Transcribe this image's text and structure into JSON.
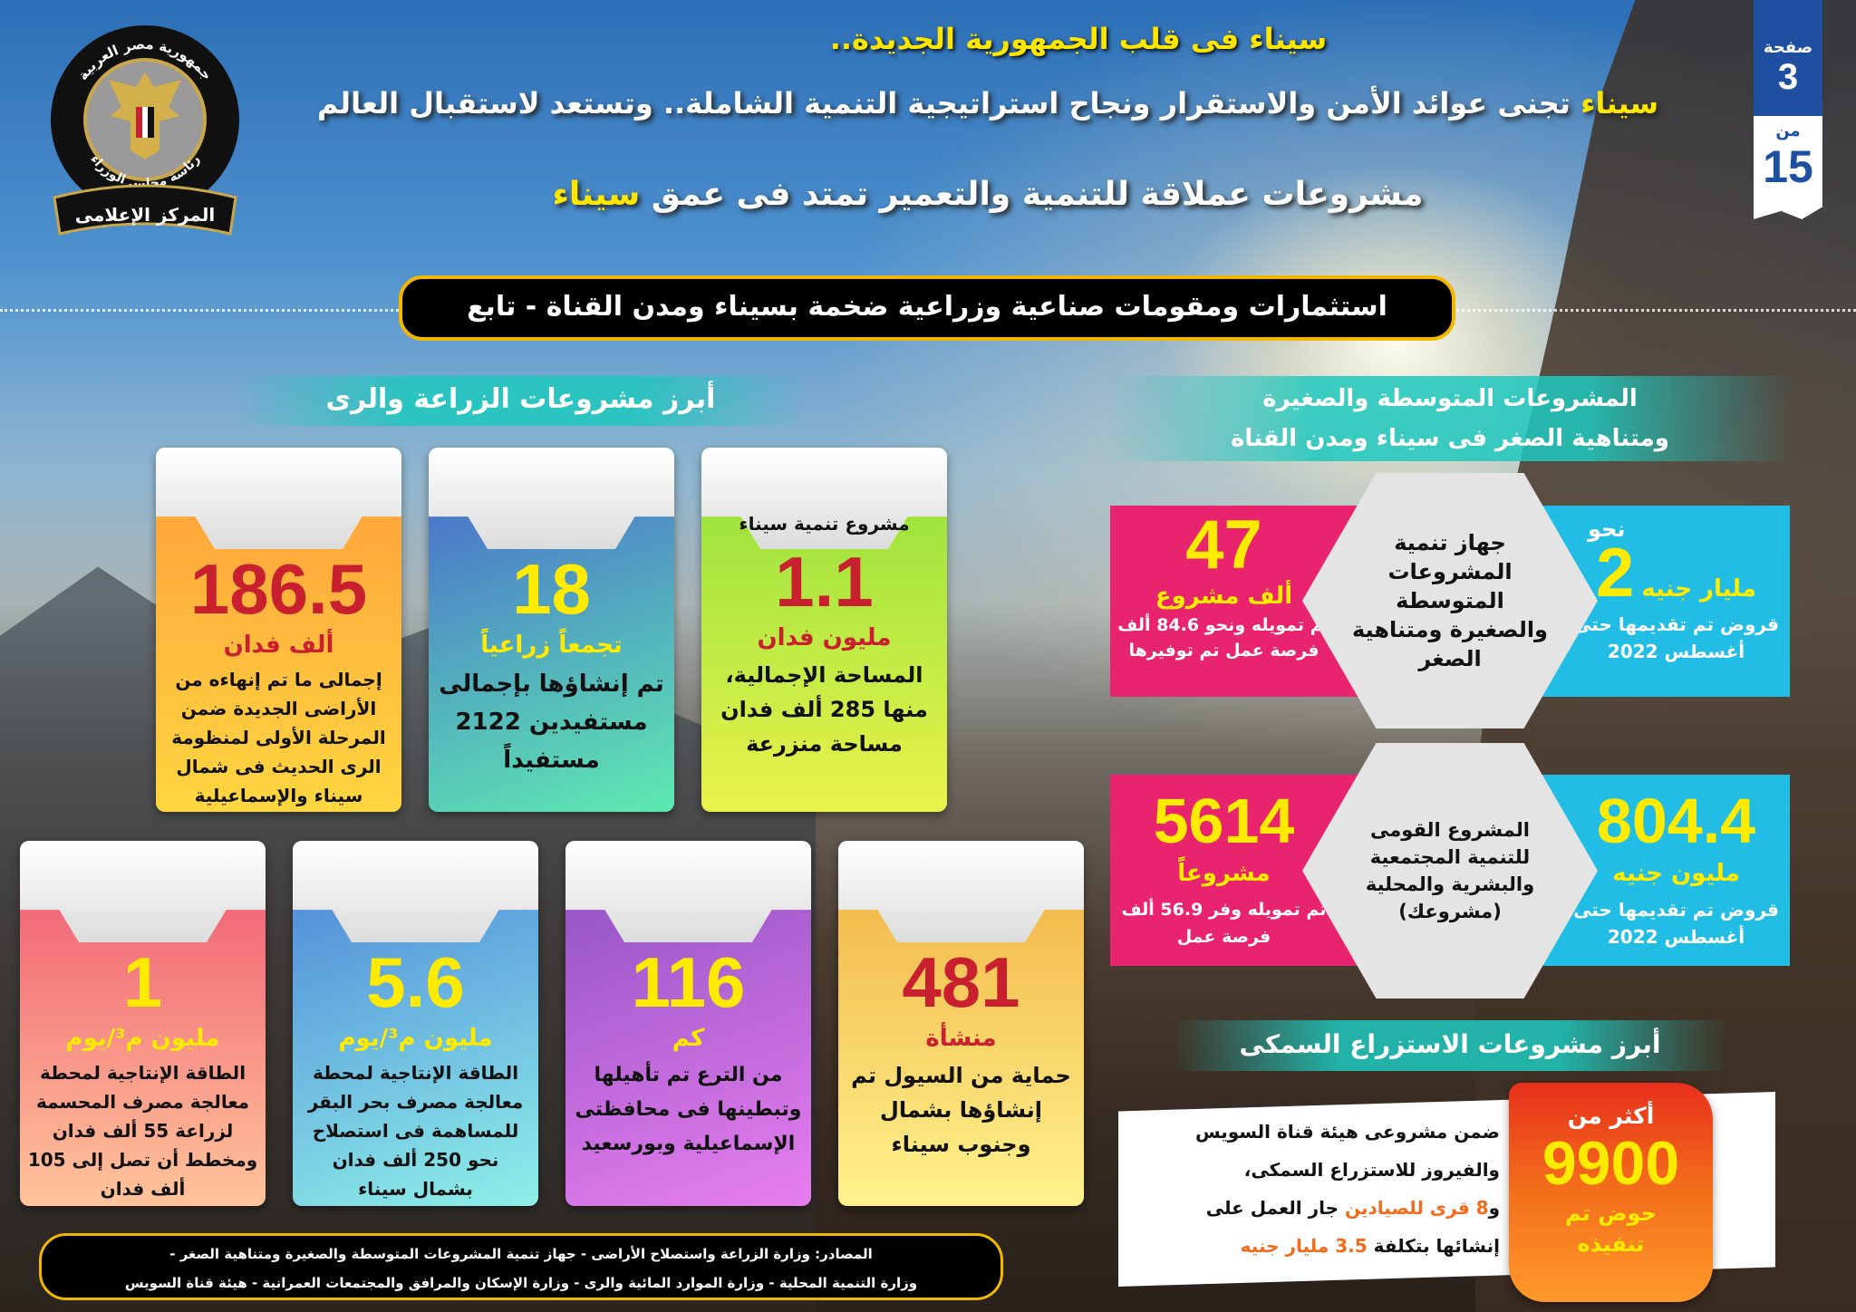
{
  "logo": {
    "ring_top": "جمهورية مصر العربية",
    "ring_bottom": "رئاسة مجلس الوزراء",
    "ribbon": "المركز الإعلامى"
  },
  "page_badge": {
    "page_label": "صفحة",
    "page": "3",
    "of_label": "من",
    "total": "15",
    "color": "#1e4fa0"
  },
  "header": {
    "kicker": "سيناء فى قلب الجمهورية الجديدة..",
    "headline_highlight": "سيناء",
    "headline_rest": " تجنى عوائد الأمن والاستقرار ونجاح استراتيجية التنمية الشاملة.. وتستعد لاستقبال العالم",
    "sub_rest": "مشروعات عملاقة للتنمية والتعمير تمتد فى عمق ",
    "sub_highlight": "سيناء",
    "banner": "استثمارات ومقومات صناعية وزراعية ضخمة بسيناء ومدن القناة - تابع"
  },
  "agri": {
    "title": "أبرز مشروعات الزراعة والرى",
    "cards": [
      {
        "pre": "",
        "value": "186.5",
        "unit": "ألف فدان",
        "desc": "إجمالى ما تم إنهاءه من الأراضى الجديدة ضمن المرحلة الأولى لمنظومة الرى الحديث فى شمال سيناء والإسماعيلية والسويس"
      },
      {
        "pre": "",
        "value": "18",
        "unit": "تجمعاً زراعياً",
        "desc": "تم إنشاؤها بإجمالى مستفيدين 2122 مستفيداً"
      },
      {
        "pre": "مشروع تنمية سيناء",
        "value": "1.1",
        "unit": "مليون فدان",
        "desc": "المساحة الإجمالية، منها 285 ألف فدان مساحة منزرعة"
      },
      {
        "value": "1",
        "unit": "مليون م³/يوم",
        "desc": "الطاقة الإنتاجية لمحطة معالجة مصرف المحسمة لزراعة 55 ألف فدان ومخطط أن تصل إلى 105 ألف فدان"
      },
      {
        "value": "5.6",
        "unit": "مليون م³/يوم",
        "desc": "الطاقة الإنتاجية لمحطة معالجة مصرف بحر البقر للمساهمة فى استصلاح نحو 250 ألف فدان بشمال سيناء"
      },
      {
        "value": "116",
        "unit": "كم",
        "desc": "من الترع تم تأهيلها وتبطينها فى محافظتى الإسماعيلية وبورسعيد"
      },
      {
        "value": "481",
        "unit": "منشأة",
        "desc": "حماية من السيول تم إنشاؤها بشمال وجنوب سيناء"
      }
    ]
  },
  "sme": {
    "title_line1": "المشروعات المتوسطة والصغيرة",
    "title_line2": "ومتناهية الصغر فى سيناء ومدن القناة",
    "rows": [
      {
        "center": "جهاز تنمية المشروعات المتوسطة والصغيرة ومتناهية الصغر",
        "right_pre": "نحو",
        "right_value": "2",
        "right_unit": "مليار جنيه",
        "right_desc": "قروض تم تقديمها حتى أغسطس 2022",
        "left_value": "47",
        "left_unit": "ألف مشروع",
        "left_desc": "تم تمويله ونحو 84.6 ألف فرصة عمل تم توفيرها"
      },
      {
        "center": "المشروع القومى للتنمية المجتمعية والبشرية والمحلية (مشروعك)",
        "right_pre": "",
        "right_value": "804.4",
        "right_unit": "مليون جنيه",
        "right_desc": "قروض تم تقديمها حتى أغسطس 2022",
        "left_value": "5614",
        "left_unit": "مشروعاً",
        "left_desc": "تم تمويله وفر 56.9 ألف فرصة عمل"
      }
    ]
  },
  "fish": {
    "title": "أبرز مشروعات الاستزراع السمكى",
    "tag_pre": "أكثر من",
    "tag_value": "9900",
    "tag_unit": "حوض تم تنفيذه",
    "line1": "ضمن مشروعى هيئة قناة السويس",
    "line2": "والفيروز للاستزراع السمكى،",
    "line3_a": "و",
    "line3_b": "8 قرى للصيادين",
    "line3_c": " جار العمل على",
    "line4_a": "إنشائها بتكلفة ",
    "line4_b": "3.5 مليار جنيه"
  },
  "sources": {
    "line1": "المصادر: وزارة الزراعة واستصلاح الأراضى - جهاز تنمية المشروعات المتوسطة والصغيرة ومتناهية الصغر -",
    "line2": "وزارة التنمية المحلية - وزارة الموارد المائية والرى - وزارة الإسكان والمرافق والمجتمعات العمرانية - هيئة قناة السويس"
  },
  "colors": {
    "accent_yellow": "#ffe600",
    "pink": "#e8246e",
    "cyan": "#22bde4",
    "orange": "#f26a1b",
    "teal": "#1ec8be"
  }
}
